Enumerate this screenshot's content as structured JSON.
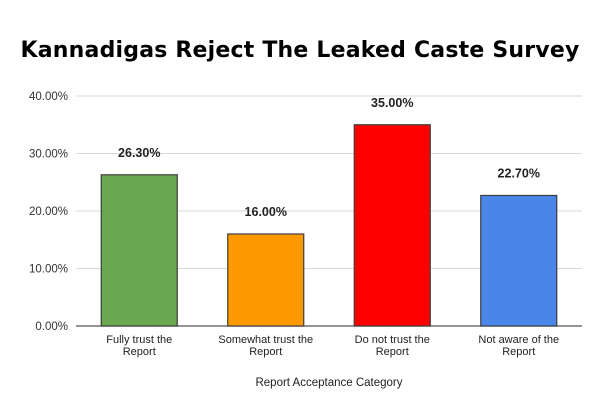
{
  "title": "Kannadigas Reject The Leaked Caste Survey",
  "chart_data": {
    "type": "bar",
    "title": "Kannadigas Reject The Leaked Caste Survey",
    "categories": [
      [
        "Fully trust the",
        "Report"
      ],
      [
        "Somewhat trust the",
        "Report"
      ],
      [
        "Do not trust the",
        "Report"
      ],
      [
        "Not aware of the",
        "Report"
      ]
    ],
    "values": [
      26.3,
      16.0,
      35.0,
      22.7
    ],
    "data_labels": [
      "26.30%",
      "16.00%",
      "35.00%",
      "22.70%"
    ],
    "colors": [
      "#6aa84f",
      "#ff9900",
      "#ff0000",
      "#4a86e8"
    ],
    "xlabel": "Report Acceptance Category",
    "ylabel": "",
    "ylim": [
      0,
      40
    ],
    "yticks": [
      "0.00%",
      "10.00%",
      "20.00%",
      "30.00%",
      "40.00%"
    ],
    "grid": true,
    "legend": "none"
  }
}
